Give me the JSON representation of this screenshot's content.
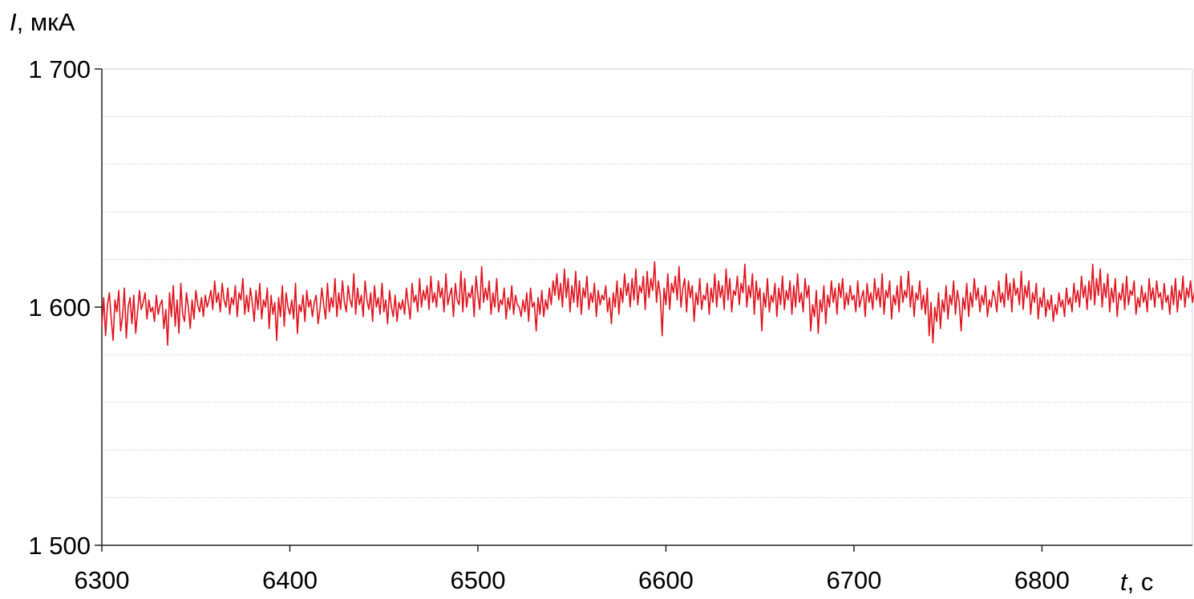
{
  "chart_data": {
    "type": "line",
    "title": "",
    "ylabel_symbol": "I",
    "ylabel_unit": ", мкА",
    "xlabel_symbol": "t",
    "xlabel_unit": ", с",
    "xlim": [
      6300,
      6880
    ],
    "ylim": [
      1500,
      1700
    ],
    "x_ticks": [
      6300,
      6400,
      6500,
      6600,
      6700,
      6800
    ],
    "x_tick_labels": [
      "6300",
      "6400",
      "6500",
      "6600",
      "6700",
      "6800"
    ],
    "y_ticks": [
      1500,
      1600,
      1700
    ],
    "y_tick_labels": [
      "1 500",
      "1 600",
      "1 700"
    ],
    "y_gridlines": [
      1520,
      1540,
      1560,
      1580,
      1620,
      1640,
      1660,
      1680
    ],
    "grid": true,
    "legend": "none",
    "series": [
      {
        "color": "#e0141e",
        "x_start": 6300,
        "x_step": 1,
        "y": [
          1592,
          1604,
          1588,
          1601,
          1606,
          1595,
          1586,
          1603,
          1598,
          1607,
          1590,
          1596,
          1608,
          1587,
          1600,
          1604,
          1593,
          1605,
          1589,
          1598,
          1607,
          1599,
          1602,
          1606,
          1595,
          1603,
          1598,
          1600,
          1594,
          1605,
          1597,
          1601,
          1603,
          1591,
          1599,
          1584,
          1606,
          1596,
          1609,
          1592,
          1603,
          1589,
          1610,
          1597,
          1594,
          1606,
          1600,
          1591,
          1603,
          1595,
          1607,
          1601,
          1598,
          1604,
          1596,
          1605,
          1600,
          1603,
          1607,
          1599,
          1611,
          1602,
          1606,
          1598,
          1610,
          1603,
          1600,
          1608,
          1597,
          1604,
          1601,
          1609,
          1596,
          1606,
          1603,
          1612,
          1597,
          1605,
          1598,
          1608,
          1602,
          1594,
          1607,
          1599,
          1610,
          1595,
          1603,
          1600,
          1608,
          1591,
          1605,
          1597,
          1602,
          1586,
          1604,
          1596,
          1609,
          1592,
          1606,
          1600,
          1597,
          1603,
          1595,
          1610,
          1589,
          1601,
          1598,
          1605,
          1594,
          1607,
          1600,
          1603,
          1596,
          1602,
          1605,
          1593,
          1599,
          1608,
          1601,
          1595,
          1610,
          1598,
          1604,
          1600,
          1612,
          1596,
          1606,
          1599,
          1611,
          1602,
          1598,
          1609,
          1603,
          1600,
          1614,
          1597,
          1608,
          1601,
          1605,
          1596,
          1611,
          1603,
          1599,
          1606,
          1594,
          1609,
          1600,
          1604,
          1597,
          1610,
          1598,
          1603,
          1593,
          1607,
          1600,
          1596,
          1605,
          1594,
          1602,
          1599,
          1603,
          1597,
          1608,
          1601,
          1595,
          1610,
          1602,
          1605,
          1598,
          1612,
          1600,
          1607,
          1603,
          1609,
          1599,
          1613,
          1602,
          1606,
          1600,
          1611,
          1604,
          1608,
          1598,
          1614,
          1601,
          1605,
          1608,
          1596,
          1610,
          1603,
          1601,
          1615,
          1598,
          1612,
          1600,
          1606,
          1604,
          1609,
          1596,
          1613,
          1605,
          1599,
          1617,
          1602,
          1608,
          1603,
          1611,
          1597,
          1606,
          1600,
          1612,
          1598,
          1603,
          1601,
          1608,
          1595,
          1604,
          1599,
          1609,
          1597,
          1605,
          1601,
          1600,
          1596,
          1603,
          1598,
          1606,
          1594,
          1608,
          1600,
          1602,
          1590,
          1604,
          1597,
          1607,
          1596,
          1603,
          1599,
          1608,
          1601,
          1611,
          1605,
          1614,
          1603,
          1610,
          1600,
          1616,
          1604,
          1612,
          1598,
          1609,
          1602,
          1615,
          1600,
          1611,
          1597,
          1608,
          1604,
          1613,
          1599,
          1606,
          1602,
          1610,
          1596,
          1607,
          1601,
          1605,
          1603,
          1609,
          1598,
          1604,
          1593,
          1606,
          1600,
          1611,
          1597,
          1608,
          1602,
          1614,
          1605,
          1610,
          1600,
          1612,
          1603,
          1616,
          1601,
          1609,
          1606,
          1613,
          1599,
          1615,
          1604,
          1612,
          1607,
          1619,
          1602,
          1611,
          1605,
          1588,
          1608,
          1601,
          1614,
          1599,
          1610,
          1606,
          1613,
          1603,
          1617,
          1600,
          1608,
          1612,
          1598,
          1611,
          1604,
          1609,
          1594,
          1606,
          1601,
          1612,
          1599,
          1605,
          1603,
          1610,
          1597,
          1608,
          1602,
          1614,
          1600,
          1611,
          1604,
          1609,
          1599,
          1616,
          1603,
          1612,
          1598,
          1607,
          1605,
          1613,
          1601,
          1610,
          1606,
          1618,
          1600,
          1609,
          1604,
          1614,
          1597,
          1611,
          1603,
          1608,
          1590,
          1606,
          1600,
          1612,
          1598,
          1605,
          1602,
          1610,
          1596,
          1608,
          1601,
          1613,
          1599,
          1607,
          1603,
          1611,
          1597,
          1609,
          1600,
          1614,
          1602,
          1606,
          1598,
          1612,
          1604,
          1609,
          1590,
          1601,
          1596,
          1607,
          1589,
          1603,
          1598,
          1609,
          1593,
          1605,
          1600,
          1611,
          1602,
          1608,
          1597,
          1610,
          1604,
          1612,
          1599,
          1606,
          1601,
          1609,
          1603,
          1605,
          1598,
          1611,
          1600,
          1604,
          1607,
          1596,
          1610,
          1602,
          1606,
          1599,
          1612,
          1603,
          1608,
          1600,
          1614,
          1597,
          1607,
          1604,
          1611,
          1595,
          1605,
          1601,
          1609,
          1598,
          1613,
          1602,
          1607,
          1604,
          1615,
          1600,
          1609,
          1596,
          1606,
          1603,
          1611,
          1599,
          1605,
          1597,
          1608,
          1588,
          1602,
          1585,
          1600,
          1594,
          1606,
          1591,
          1603,
          1598,
          1609,
          1595,
          1605,
          1601,
          1611,
          1597,
          1607,
          1602,
          1590,
          1604,
          1599,
          1610,
          1596,
          1606,
          1600,
          1612,
          1603,
          1608,
          1598,
          1605,
          1601,
          1609,
          1596,
          1603,
          1600,
          1607,
          1604,
          1598,
          1611,
          1602,
          1606,
          1600,
          1614,
          1603,
          1610,
          1598,
          1612,
          1605,
          1608,
          1601,
          1615,
          1599,
          1609,
          1604,
          1611,
          1597,
          1606,
          1602,
          1610,
          1595,
          1604,
          1600,
          1608,
          1596,
          1603,
          1599,
          1605,
          1594,
          1601,
          1597,
          1606,
          1600,
          1603,
          1596,
          1608,
          1601,
          1604,
          1598,
          1610,
          1602,
          1607,
          1600,
          1613,
          1604,
          1609,
          1599,
          1611,
          1603,
          1618,
          1601,
          1612,
          1605,
          1616,
          1600,
          1610,
          1604,
          1614,
          1598,
          1608,
          1602,
          1612,
          1596,
          1606,
          1603,
          1610,
          1599,
          1613,
          1601,
          1607,
          1605,
          1611,
          1597,
          1604,
          1600,
          1609,
          1602,
          1606,
          1598,
          1612,
          1603,
          1608,
          1600,
          1611,
          1604,
          1606,
          1599,
          1610,
          1602,
          1605,
          1597,
          1609,
          1601,
          1612,
          1598,
          1607,
          1603,
          1613,
          1600,
          1608,
          1604,
          1611,
          1602,
          1606,
          1599,
          1610
        ]
      }
    ]
  }
}
